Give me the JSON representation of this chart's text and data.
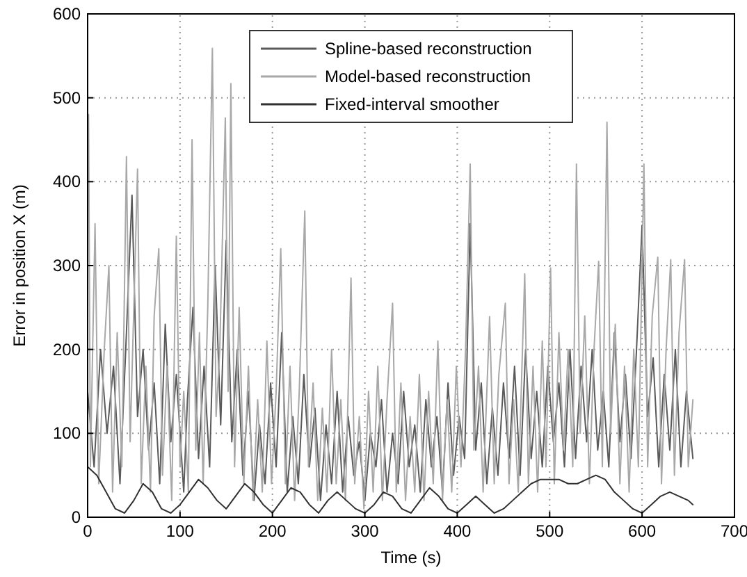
{
  "chart_data": {
    "type": "line",
    "xlabel": "Time (s)",
    "ylabel": "Error in position X (m)",
    "xlim": [
      0,
      700
    ],
    "xticks": [
      0,
      100,
      200,
      300,
      400,
      500,
      600,
      700
    ],
    "ylim": [
      0,
      600
    ],
    "yticks": [
      0,
      100,
      200,
      300,
      400,
      500,
      600
    ],
    "grid": true,
    "legend": "top",
    "line_style": "solid",
    "marker": "none",
    "series": [
      {
        "name": "Spline-based reconstruction",
        "color": "#5a5a5a",
        "x": [
          0,
          7,
          14,
          21,
          28,
          35,
          42,
          48,
          54,
          60,
          66,
          72,
          78,
          84,
          90,
          96,
          104,
          108,
          114,
          120,
          126,
          132,
          138,
          144,
          150,
          156,
          162,
          168,
          174,
          180,
          186,
          192,
          198,
          204,
          210,
          216,
          222,
          228,
          234,
          240,
          246,
          252,
          258,
          264,
          270,
          276,
          282,
          288,
          294,
          300,
          306,
          312,
          318,
          324,
          330,
          336,
          342,
          348,
          354,
          360,
          366,
          372,
          378,
          384,
          390,
          396,
          402,
          408,
          414,
          420,
          426,
          432,
          438,
          444,
          450,
          456,
          462,
          468,
          474,
          480,
          486,
          492,
          498,
          504,
          510,
          516,
          522,
          528,
          534,
          540,
          546,
          552,
          558,
          564,
          570,
          576,
          582,
          588,
          594,
          600,
          606,
          612,
          618,
          624,
          630,
          636,
          642,
          648,
          655
        ],
        "values": [
          150,
          60,
          200,
          100,
          180,
          40,
          220,
          384,
          120,
          200,
          80,
          160,
          40,
          230,
          90,
          170,
          30,
          140,
          250,
          70,
          180,
          60,
          300,
          110,
          330,
          90,
          200,
          50,
          150,
          20,
          110,
          40,
          160,
          60,
          220,
          30,
          120,
          40,
          170,
          60,
          130,
          20,
          110,
          40,
          150,
          30,
          120,
          50,
          90,
          20,
          100,
          60,
          140,
          30,
          100,
          40,
          150,
          60,
          110,
          30,
          140,
          60,
          120,
          30,
          160,
          50,
          120,
          70,
          350,
          80,
          160,
          40,
          130,
          50,
          160,
          70,
          180,
          50,
          200,
          70,
          150,
          60,
          180,
          90,
          160,
          60,
          200,
          70,
          180,
          90,
          200,
          80,
          150,
          60,
          220,
          90,
          170,
          70,
          200,
          348,
          120,
          190,
          60,
          170,
          80,
          200,
          60,
          150,
          70
        ]
      },
      {
        "name": "Model-based reconstruction",
        "color": "#a8a8a8",
        "x": [
          1,
          3,
          8,
          12,
          18,
          23,
          27,
          32,
          37,
          42,
          46,
          50,
          54,
          58,
          63,
          68,
          72,
          77,
          81,
          86,
          91,
          96,
          100,
          104,
          109,
          113,
          117,
          121,
          125,
          130,
          135,
          139,
          143,
          149,
          152,
          155,
          159,
          164,
          169,
          174,
          179,
          184,
          189,
          194,
          199,
          204,
          209,
          214,
          219,
          224,
          229,
          235,
          239,
          244,
          249,
          254,
          259,
          264,
          269,
          274,
          279,
          285,
          289,
          294,
          299,
          304,
          309,
          314,
          319,
          324,
          330,
          334,
          339,
          344,
          349,
          354,
          359,
          364,
          369,
          374,
          379,
          384,
          389,
          394,
          399,
          404,
          409,
          414,
          418,
          423,
          428,
          435,
          440,
          445,
          452,
          456,
          461,
          466,
          473,
          477,
          482,
          487,
          492,
          496,
          501,
          505,
          510,
          515,
          520,
          525,
          529,
          533,
          538,
          543,
          548,
          553,
          557,
          562,
          566,
          571,
          576,
          581,
          586,
          591,
          596,
          602,
          606,
          611,
          617,
          621,
          626,
          631,
          635,
          640,
          646,
          650,
          655
        ],
        "values": [
          480,
          60,
          350,
          40,
          200,
          300,
          30,
          220,
          60,
          430,
          90,
          250,
          415,
          40,
          180,
          30,
          240,
          320,
          50,
          180,
          20,
          335,
          60,
          150,
          30,
          450,
          80,
          220,
          40,
          250,
          559,
          120,
          200,
          476,
          150,
          517,
          60,
          250,
          40,
          180,
          20,
          140,
          30,
          210,
          40,
          150,
          320,
          40,
          180,
          20,
          150,
          365,
          60,
          160,
          20,
          130,
          30,
          200,
          40,
          140,
          20,
          285,
          40,
          120,
          10,
          150,
          30,
          180,
          20,
          140,
          255,
          30,
          160,
          20,
          120,
          30,
          170,
          20,
          150,
          40,
          210,
          20,
          140,
          30,
          180,
          60,
          200,
          421,
          80,
          180,
          30,
          239,
          40,
          170,
          255,
          40,
          140,
          30,
          290,
          40,
          180,
          30,
          210,
          60,
          297,
          40,
          220,
          80,
          200,
          60,
          421,
          100,
          240,
          40,
          200,
          305,
          60,
          471,
          100,
          230,
          40,
          180,
          30,
          200,
          60,
          421,
          60,
          240,
          310,
          40,
          200,
          307,
          50,
          220,
          307,
          60,
          140
        ]
      },
      {
        "name": "Fixed-interval smoother",
        "color": "#303030",
        "x": [
          0,
          10,
          20,
          30,
          40,
          50,
          60,
          70,
          80,
          90,
          100,
          110,
          120,
          130,
          140,
          150,
          160,
          170,
          180,
          190,
          200,
          210,
          220,
          230,
          240,
          250,
          260,
          270,
          280,
          290,
          300,
          310,
          320,
          330,
          340,
          350,
          360,
          370,
          380,
          390,
          400,
          410,
          420,
          430,
          440,
          450,
          460,
          470,
          480,
          490,
          500,
          510,
          520,
          530,
          540,
          550,
          560,
          570,
          580,
          590,
          600,
          610,
          620,
          630,
          640,
          650,
          655
        ],
        "values": [
          60,
          50,
          30,
          10,
          5,
          20,
          40,
          30,
          10,
          5,
          15,
          30,
          45,
          35,
          20,
          10,
          25,
          40,
          30,
          15,
          5,
          20,
          35,
          30,
          15,
          5,
          20,
          30,
          20,
          10,
          5,
          15,
          30,
          25,
          10,
          5,
          20,
          35,
          25,
          10,
          5,
          15,
          25,
          15,
          5,
          10,
          20,
          30,
          40,
          45,
          45,
          45,
          40,
          40,
          45,
          50,
          45,
          30,
          20,
          10,
          5,
          15,
          25,
          30,
          25,
          20,
          15
        ]
      }
    ]
  }
}
